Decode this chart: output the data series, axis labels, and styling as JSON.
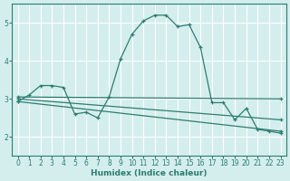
{
  "xlabel": "Humidex (Indice chaleur)",
  "bg_color": "#d4eeee",
  "grid_color": "#ffffff",
  "line_color": "#2e7d6e",
  "xlim": [
    -0.5,
    23.5
  ],
  "ylim": [
    1.5,
    5.5
  ],
  "yticks": [
    2,
    3,
    4,
    5
  ],
  "xticks": [
    0,
    1,
    2,
    3,
    4,
    5,
    6,
    7,
    8,
    9,
    10,
    11,
    12,
    13,
    14,
    15,
    16,
    17,
    18,
    19,
    20,
    21,
    22,
    23
  ],
  "main_x": [
    0,
    1,
    2,
    3,
    4,
    5,
    6,
    7,
    8,
    9,
    10,
    11,
    12,
    13,
    14,
    15,
    16,
    17,
    18,
    19,
    20,
    21,
    22,
    23
  ],
  "main_y": [
    2.93,
    3.1,
    3.35,
    3.35,
    3.3,
    2.6,
    2.65,
    2.5,
    3.05,
    4.05,
    4.7,
    5.05,
    5.2,
    5.2,
    4.9,
    4.95,
    4.35,
    2.9,
    2.9,
    2.45,
    2.75,
    2.2,
    2.15,
    2.1
  ],
  "trend1_x": [
    0,
    23
  ],
  "trend1_y": [
    3.0,
    2.45
  ],
  "trend2_x": [
    0,
    23
  ],
  "trend2_y": [
    2.93,
    2.15
  ],
  "trend3_x": [
    0,
    23
  ],
  "trend3_y": [
    3.05,
    3.0
  ]
}
